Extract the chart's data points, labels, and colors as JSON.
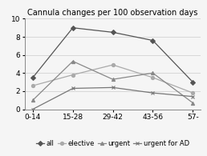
{
  "title": "Cannula changes per 100 observation days",
  "categories": [
    "0-14",
    "15-28",
    "29-42",
    "43-56",
    "57-"
  ],
  "series": {
    "all": [
      3.5,
      9.0,
      8.5,
      7.6,
      3.0
    ],
    "elective": [
      2.6,
      3.8,
      4.9,
      3.5,
      1.8
    ],
    "urgent": [
      1.0,
      5.3,
      3.3,
      4.0,
      0.7
    ],
    "urgent_for_AD": [
      0.0,
      2.3,
      2.4,
      1.8,
      1.4
    ]
  },
  "colors": {
    "all": "#555555",
    "elective": "#aaaaaa",
    "urgent": "#888888",
    "urgent_for_AD": "#777777"
  },
  "markers": {
    "all": "D",
    "elective": "o",
    "urgent": "^",
    "urgent_for_AD": "x"
  },
  "legend_labels": [
    "all",
    "elective",
    "urgent",
    "urgent for AD"
  ],
  "ylim": [
    0,
    10
  ],
  "yticks": [
    0,
    2,
    4,
    6,
    8,
    10
  ],
  "background_color": "#f5f5f5",
  "title_fontsize": 7.0,
  "tick_fontsize": 6.5,
  "legend_fontsize": 6.0
}
